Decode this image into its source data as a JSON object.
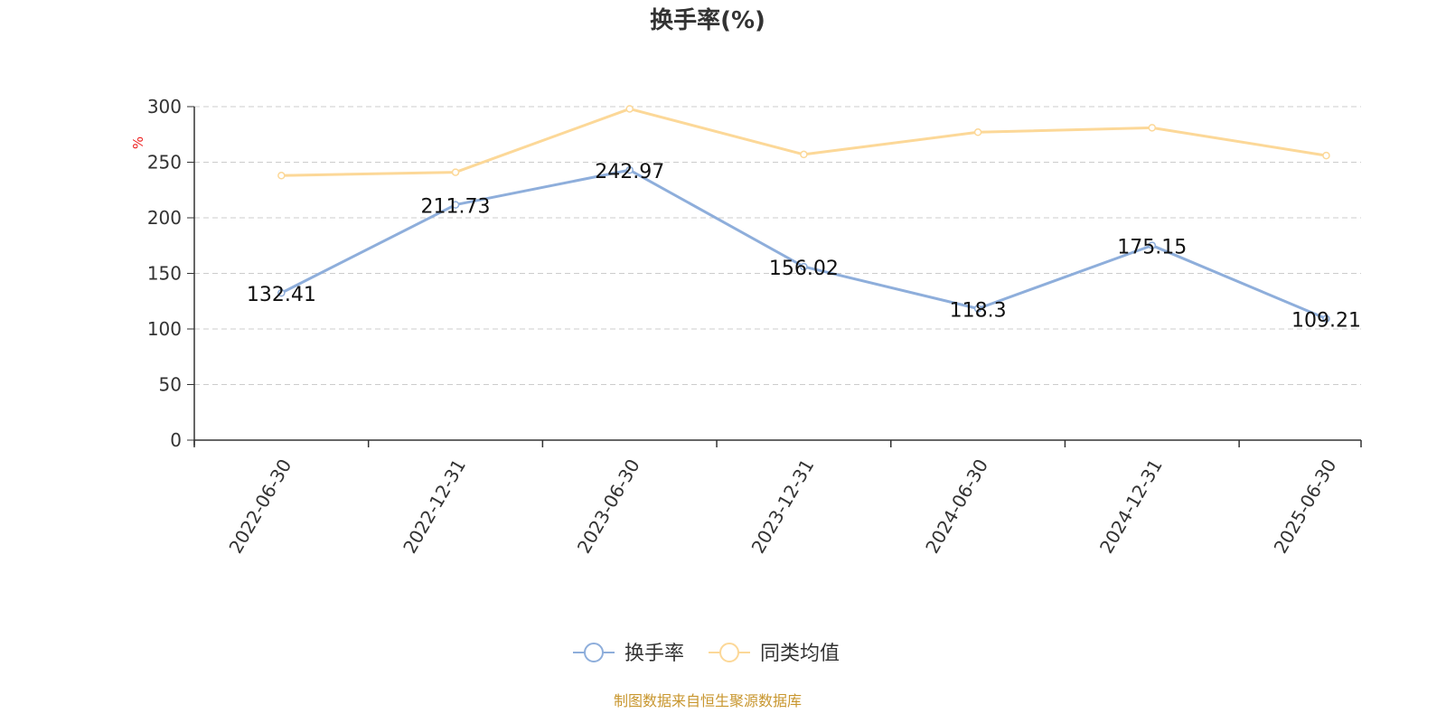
{
  "chart_data": {
    "type": "line",
    "title": "换手率(%)",
    "ylabel": "%",
    "xlabel": "",
    "categories": [
      "2022-06-30",
      "2022-12-31",
      "2023-06-30",
      "2023-12-31",
      "2024-06-30",
      "2024-12-31",
      "2025-06-30"
    ],
    "series": [
      {
        "name": "换手率",
        "color": "#8eaedb",
        "values": [
          132.41,
          211.73,
          242.97,
          156.02,
          118.3,
          175.15,
          109.21
        ],
        "labels": [
          "132.41",
          "211.73",
          "242.97",
          "156.02",
          "118.3",
          "175.15",
          "109.21"
        ]
      },
      {
        "name": "同类均值",
        "color": "#fcd898",
        "values": [
          238,
          241,
          298,
          257,
          277,
          281,
          256
        ]
      }
    ],
    "ylim": [
      0,
      300
    ],
    "yticks": [
      "0",
      "50",
      "100",
      "150",
      "200",
      "250",
      "300"
    ],
    "grid": true,
    "legend_position": "bottom"
  },
  "source_note": "制图数据来自恒生聚源数据库"
}
